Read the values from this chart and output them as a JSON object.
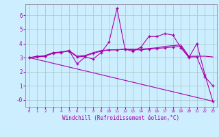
{
  "background_color": "#cceeff",
  "grid_color": "#aacccc",
  "line_color": "#aa00aa",
  "xlim": [
    -0.5,
    23.5
  ],
  "ylim": [
    -0.5,
    6.8
  ],
  "xlabel": "Windchill (Refroidissement éolien,°C)",
  "yticks": [
    0,
    1,
    2,
    3,
    4,
    5,
    6
  ],
  "ytick_labels": [
    "-0",
    "1",
    "2",
    "3",
    "4",
    "5",
    "6"
  ],
  "xtick_labels": [
    "0",
    "1",
    "2",
    "3",
    "4",
    "5",
    "6",
    "7",
    "8",
    "9",
    "10",
    "11",
    "12",
    "13",
    "14",
    "15",
    "16",
    "17",
    "18",
    "19",
    "20",
    "21",
    "22",
    "23"
  ],
  "series": [
    {
      "x": [
        0,
        1,
        2,
        3,
        4,
        5,
        6,
        7,
        8,
        9,
        10,
        11,
        12,
        13,
        14,
        15,
        16,
        17,
        18,
        19,
        20,
        21,
        22,
        23
      ],
      "y": [
        3.0,
        3.1,
        3.1,
        3.35,
        3.35,
        3.5,
        2.55,
        3.05,
        2.9,
        3.35,
        4.1,
        6.5,
        3.6,
        3.45,
        3.75,
        4.5,
        4.5,
        4.7,
        4.6,
        3.7,
        3.0,
        4.0,
        1.8,
        -0.1
      ],
      "marker": "+"
    },
    {
      "x": [
        0,
        1,
        2,
        3,
        4,
        5,
        6,
        7,
        8,
        9,
        10,
        11,
        12,
        13,
        14,
        15,
        16,
        17,
        18,
        19,
        20,
        21,
        22,
        23
      ],
      "y": [
        3.0,
        3.05,
        3.1,
        3.3,
        3.4,
        3.45,
        3.05,
        3.1,
        3.3,
        3.45,
        3.55,
        3.55,
        3.6,
        3.55,
        3.55,
        3.6,
        3.65,
        3.7,
        3.75,
        3.8,
        3.05,
        3.05,
        1.65,
        1.0
      ],
      "marker": "+"
    },
    {
      "x": [
        0,
        1,
        2,
        3,
        4,
        5,
        6,
        7,
        8,
        9,
        10,
        11,
        12,
        13,
        14,
        15,
        16,
        17,
        18,
        19,
        20,
        21,
        22,
        23
      ],
      "y": [
        3.0,
        3.05,
        3.15,
        3.35,
        3.4,
        3.5,
        3.1,
        3.15,
        3.35,
        3.5,
        3.55,
        3.55,
        3.6,
        3.6,
        3.6,
        3.65,
        3.7,
        3.8,
        3.85,
        3.9,
        3.1,
        3.1,
        3.1,
        3.05
      ],
      "marker": null
    },
    {
      "x": [
        0,
        23
      ],
      "y": [
        3.0,
        -0.1
      ],
      "marker": null
    }
  ]
}
